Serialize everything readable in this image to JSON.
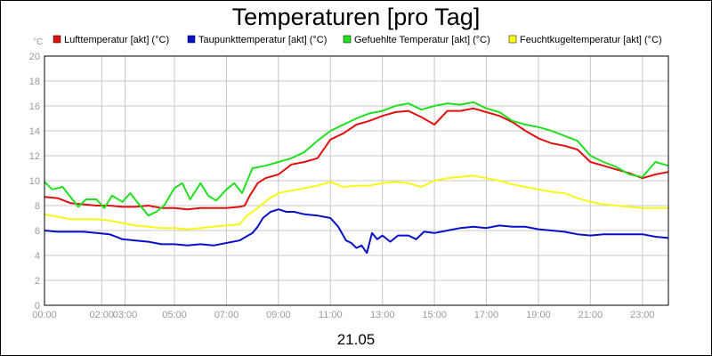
{
  "chart_data": {
    "type": "line",
    "title": "Temperaturen [pro Tag]",
    "y_unit": "°C",
    "ylim": [
      0,
      20
    ],
    "y_ticks": [
      0,
      2,
      4,
      6,
      8,
      10,
      12,
      14,
      16,
      18,
      20
    ],
    "xlim_hours": [
      0,
      24
    ],
    "x_ticks": [
      {
        "h": 0,
        "label": "00:00"
      },
      {
        "h": 2.2,
        "label": "02:00"
      },
      {
        "h": 3.1,
        "label": "03:00"
      },
      {
        "h": 5.0,
        "label": "05:00"
      },
      {
        "h": 7.0,
        "label": "07:00"
      },
      {
        "h": 9.0,
        "label": "09:00"
      },
      {
        "h": 11.0,
        "label": "11:00"
      },
      {
        "h": 13.0,
        "label": "13:00"
      },
      {
        "h": 15.0,
        "label": "15:00"
      },
      {
        "h": 17.0,
        "label": "17:00"
      },
      {
        "h": 19.0,
        "label": "19:00"
      },
      {
        "h": 21.0,
        "label": "21:00"
      },
      {
        "h": 23.0,
        "label": "23:00"
      }
    ],
    "x_label": "21.05",
    "grid": true,
    "legend_position": "top",
    "series": [
      {
        "name": "Lufttemperatur [akt] (°C)",
        "color": "#e01010",
        "points": [
          [
            0,
            8.7
          ],
          [
            0.5,
            8.6
          ],
          [
            1,
            8.2
          ],
          [
            1.5,
            8.1
          ],
          [
            2,
            8.0
          ],
          [
            2.5,
            8.0
          ],
          [
            3,
            7.9
          ],
          [
            3.5,
            7.9
          ],
          [
            4,
            8.0
          ],
          [
            4.5,
            7.8
          ],
          [
            5,
            7.8
          ],
          [
            5.5,
            7.7
          ],
          [
            6,
            7.8
          ],
          [
            6.5,
            7.8
          ],
          [
            7,
            7.8
          ],
          [
            7.5,
            7.9
          ],
          [
            7.7,
            8.0
          ],
          [
            7.9,
            8.8
          ],
          [
            8.2,
            9.8
          ],
          [
            8.5,
            10.2
          ],
          [
            9,
            10.5
          ],
          [
            9.5,
            11.3
          ],
          [
            10,
            11.5
          ],
          [
            10.5,
            11.8
          ],
          [
            11,
            13.3
          ],
          [
            11.5,
            13.8
          ],
          [
            12,
            14.5
          ],
          [
            12.5,
            14.8
          ],
          [
            13,
            15.2
          ],
          [
            13.5,
            15.5
          ],
          [
            14,
            15.6
          ],
          [
            14.5,
            15.1
          ],
          [
            15,
            14.5
          ],
          [
            15.5,
            15.6
          ],
          [
            16,
            15.6
          ],
          [
            16.5,
            15.8
          ],
          [
            17,
            15.5
          ],
          [
            17.5,
            15.2
          ],
          [
            18,
            14.7
          ],
          [
            18.5,
            14.0
          ],
          [
            19,
            13.4
          ],
          [
            19.5,
            13.0
          ],
          [
            20,
            12.8
          ],
          [
            20.5,
            12.5
          ],
          [
            21,
            11.5
          ],
          [
            21.5,
            11.2
          ],
          [
            22,
            10.9
          ],
          [
            22.5,
            10.6
          ],
          [
            23,
            10.2
          ],
          [
            23.5,
            10.5
          ],
          [
            24,
            10.7
          ]
        ]
      },
      {
        "name": "Taupunkttemperatur [akt] (°C)",
        "color": "#0a10c8",
        "points": [
          [
            0,
            6.0
          ],
          [
            0.5,
            5.9
          ],
          [
            1,
            5.9
          ],
          [
            1.5,
            5.9
          ],
          [
            2,
            5.8
          ],
          [
            2.5,
            5.7
          ],
          [
            3,
            5.3
          ],
          [
            3.5,
            5.2
          ],
          [
            4,
            5.1
          ],
          [
            4.5,
            4.9
          ],
          [
            5,
            4.9
          ],
          [
            5.5,
            4.8
          ],
          [
            6,
            4.9
          ],
          [
            6.5,
            4.8
          ],
          [
            7,
            5.0
          ],
          [
            7.5,
            5.2
          ],
          [
            8,
            5.8
          ],
          [
            8.2,
            6.3
          ],
          [
            8.4,
            7.0
          ],
          [
            8.7,
            7.5
          ],
          [
            9,
            7.7
          ],
          [
            9.3,
            7.5
          ],
          [
            9.6,
            7.5
          ],
          [
            10,
            7.3
          ],
          [
            10.5,
            7.2
          ],
          [
            11,
            7.0
          ],
          [
            11.3,
            6.3
          ],
          [
            11.6,
            5.2
          ],
          [
            11.8,
            5.0
          ],
          [
            12,
            4.6
          ],
          [
            12.2,
            4.8
          ],
          [
            12.4,
            4.2
          ],
          [
            12.6,
            5.8
          ],
          [
            12.8,
            5.3
          ],
          [
            13,
            5.6
          ],
          [
            13.3,
            5.1
          ],
          [
            13.6,
            5.6
          ],
          [
            14,
            5.6
          ],
          [
            14.3,
            5.3
          ],
          [
            14.6,
            5.9
          ],
          [
            15,
            5.8
          ],
          [
            15.5,
            6.0
          ],
          [
            16,
            6.2
          ],
          [
            16.5,
            6.3
          ],
          [
            17,
            6.2
          ],
          [
            17.5,
            6.4
          ],
          [
            18,
            6.3
          ],
          [
            18.5,
            6.3
          ],
          [
            19,
            6.1
          ],
          [
            19.5,
            6.0
          ],
          [
            20,
            5.9
          ],
          [
            20.5,
            5.7
          ],
          [
            21,
            5.6
          ],
          [
            21.5,
            5.7
          ],
          [
            22,
            5.7
          ],
          [
            22.5,
            5.7
          ],
          [
            23,
            5.7
          ],
          [
            23.5,
            5.5
          ],
          [
            24,
            5.4
          ]
        ]
      },
      {
        "name": "Gefuehlte Temperatur [akt] (°C)",
        "color": "#20e020",
        "points": [
          [
            0,
            9.9
          ],
          [
            0.3,
            9.3
          ],
          [
            0.7,
            9.5
          ],
          [
            1,
            8.7
          ],
          [
            1.3,
            7.9
          ],
          [
            1.6,
            8.5
          ],
          [
            2,
            8.5
          ],
          [
            2.3,
            7.8
          ],
          [
            2.6,
            8.8
          ],
          [
            3,
            8.3
          ],
          [
            3.3,
            9.0
          ],
          [
            3.6,
            8.2
          ],
          [
            4,
            7.2
          ],
          [
            4.3,
            7.5
          ],
          [
            4.6,
            8.0
          ],
          [
            5,
            9.4
          ],
          [
            5.3,
            9.8
          ],
          [
            5.6,
            8.5
          ],
          [
            6,
            9.8
          ],
          [
            6.3,
            8.8
          ],
          [
            6.6,
            8.4
          ],
          [
            7,
            9.3
          ],
          [
            7.3,
            9.8
          ],
          [
            7.6,
            9.0
          ],
          [
            8,
            11.0
          ],
          [
            8.5,
            11.2
          ],
          [
            9,
            11.5
          ],
          [
            9.5,
            11.8
          ],
          [
            10,
            12.3
          ],
          [
            10.5,
            13.2
          ],
          [
            11,
            14.0
          ],
          [
            11.5,
            14.5
          ],
          [
            12,
            15.0
          ],
          [
            12.5,
            15.4
          ],
          [
            13,
            15.6
          ],
          [
            13.5,
            16.0
          ],
          [
            14,
            16.2
          ],
          [
            14.5,
            15.7
          ],
          [
            15,
            16.0
          ],
          [
            15.5,
            16.2
          ],
          [
            16,
            16.1
          ],
          [
            16.5,
            16.3
          ],
          [
            17,
            15.8
          ],
          [
            17.5,
            15.5
          ],
          [
            18,
            14.8
          ],
          [
            18.5,
            14.5
          ],
          [
            19,
            14.3
          ],
          [
            19.5,
            14.0
          ],
          [
            20,
            13.6
          ],
          [
            20.5,
            13.2
          ],
          [
            21,
            12.0
          ],
          [
            21.5,
            11.5
          ],
          [
            22,
            11.1
          ],
          [
            22.5,
            10.5
          ],
          [
            23,
            10.3
          ],
          [
            23.5,
            11.5
          ],
          [
            24,
            11.2
          ]
        ]
      },
      {
        "name": "Feuchtkugeltemperatur [akt] (°C)",
        "color": "#f8f818",
        "points": [
          [
            0,
            7.3
          ],
          [
            0.5,
            7.1
          ],
          [
            1,
            6.9
          ],
          [
            1.5,
            6.9
          ],
          [
            2,
            6.9
          ],
          [
            2.5,
            6.8
          ],
          [
            3,
            6.6
          ],
          [
            3.5,
            6.4
          ],
          [
            4,
            6.3
          ],
          [
            4.5,
            6.2
          ],
          [
            5,
            6.2
          ],
          [
            5.5,
            6.1
          ],
          [
            6,
            6.2
          ],
          [
            6.5,
            6.3
          ],
          [
            7,
            6.4
          ],
          [
            7.5,
            6.5
          ],
          [
            7.8,
            7.2
          ],
          [
            8.2,
            7.8
          ],
          [
            8.6,
            8.5
          ],
          [
            9,
            9.0
          ],
          [
            9.5,
            9.2
          ],
          [
            10,
            9.4
          ],
          [
            10.5,
            9.6
          ],
          [
            11,
            9.9
          ],
          [
            11.5,
            9.5
          ],
          [
            12,
            9.6
          ],
          [
            12.5,
            9.6
          ],
          [
            13,
            9.8
          ],
          [
            13.5,
            9.9
          ],
          [
            14,
            9.8
          ],
          [
            14.5,
            9.5
          ],
          [
            15,
            10.0
          ],
          [
            15.5,
            10.2
          ],
          [
            16,
            10.3
          ],
          [
            16.5,
            10.4
          ],
          [
            17,
            10.2
          ],
          [
            17.5,
            10.0
          ],
          [
            18,
            9.7
          ],
          [
            18.5,
            9.5
          ],
          [
            19,
            9.3
          ],
          [
            19.5,
            9.1
          ],
          [
            20,
            9.0
          ],
          [
            20.5,
            8.6
          ],
          [
            21,
            8.3
          ],
          [
            21.5,
            8.1
          ],
          [
            22,
            8.0
          ],
          [
            22.5,
            7.9
          ],
          [
            23,
            7.8
          ],
          [
            23.5,
            7.8
          ],
          [
            24,
            7.8
          ]
        ]
      }
    ]
  }
}
